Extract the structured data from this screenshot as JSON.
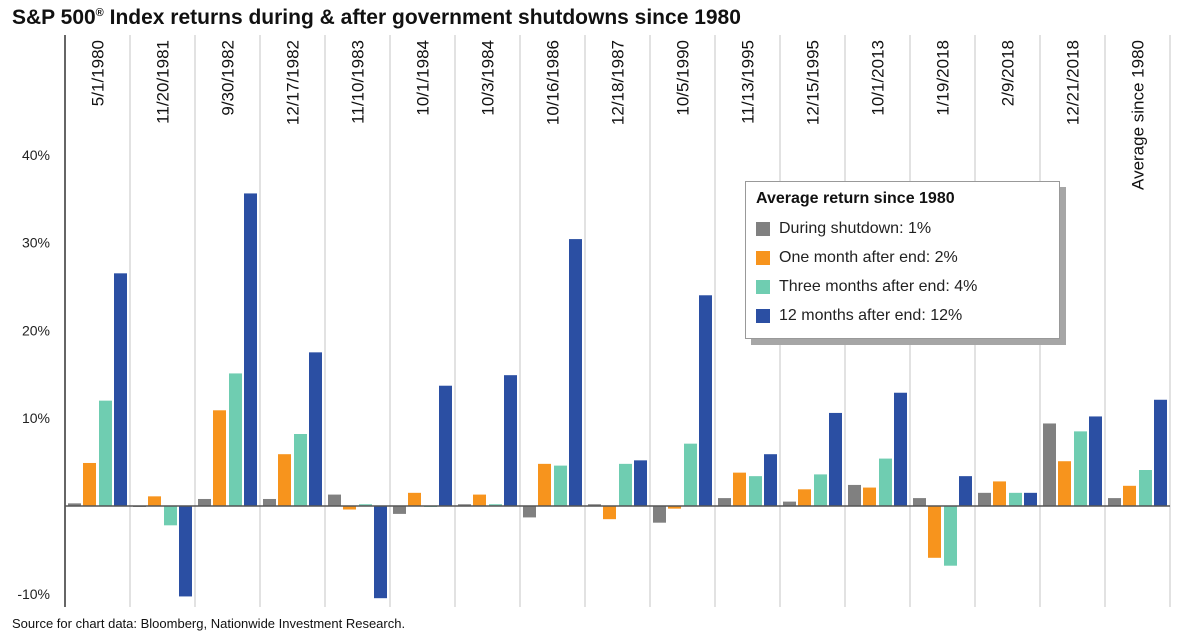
{
  "title": "S&P 500",
  "title_mark": "®",
  "title_rest": " Index returns during & after government shutdowns since 1980",
  "source": "Source for chart data: Bloomberg, Nationwide Investment Research.",
  "chart_data": {
    "type": "bar",
    "title": "S&P 500® Index returns during & after government shutdowns since 1980",
    "categories": [
      "5/1/1980",
      "11/20/1981",
      "9/30/1982",
      "12/17/1982",
      "11/10/1983",
      "10/1/1984",
      "10/3/1984",
      "10/16/1986",
      "12/18/1987",
      "10/5/1990",
      "11/13/1995",
      "12/15/1995",
      "10/1/2013",
      "1/19/2018",
      "2/9/2018",
      "12/21/2018",
      "Average since 1980"
    ],
    "ylim": [
      -10,
      50
    ],
    "yticks": [
      40,
      30,
      20,
      10,
      -10
    ],
    "ytick_labels": [
      "40%",
      "30%",
      "20%",
      "10%",
      "-10%"
    ],
    "grid": "vertical separators",
    "legend_position": "right",
    "legend_title": "Average return since 1980",
    "series": [
      {
        "name": "During shutdown: 1%",
        "color": "#808080",
        "values": [
          0.3,
          -0.1,
          0.8,
          0.8,
          1.3,
          -0.9,
          0.2,
          -1.3,
          0.2,
          -1.9,
          0.9,
          0.5,
          2.4,
          0.9,
          1.5,
          9.4,
          0.9
        ]
      },
      {
        "name": "One month after end: 2%",
        "color": "#f7941d",
        "values": [
          4.9,
          1.1,
          10.9,
          5.9,
          -0.4,
          1.5,
          1.3,
          4.8,
          -1.5,
          -0.3,
          3.8,
          1.9,
          2.1,
          -5.9,
          2.8,
          5.1,
          2.3
        ]
      },
      {
        "name": "Three months after end: 4%",
        "color": "#6fcdb1",
        "values": [
          12.0,
          -2.2,
          15.1,
          8.2,
          0.2,
          0.0,
          0.2,
          4.6,
          4.8,
          7.1,
          3.4,
          3.6,
          5.4,
          -6.8,
          1.5,
          8.5,
          4.1
        ]
      },
      {
        "name": "12 months after end: 12%",
        "color": "#2b4fa3",
        "values": [
          26.5,
          -10.3,
          35.6,
          17.5,
          -10.5,
          13.7,
          14.9,
          30.4,
          5.2,
          24.0,
          5.9,
          10.6,
          12.9,
          3.4,
          1.5,
          10.2,
          12.1
        ]
      }
    ]
  }
}
